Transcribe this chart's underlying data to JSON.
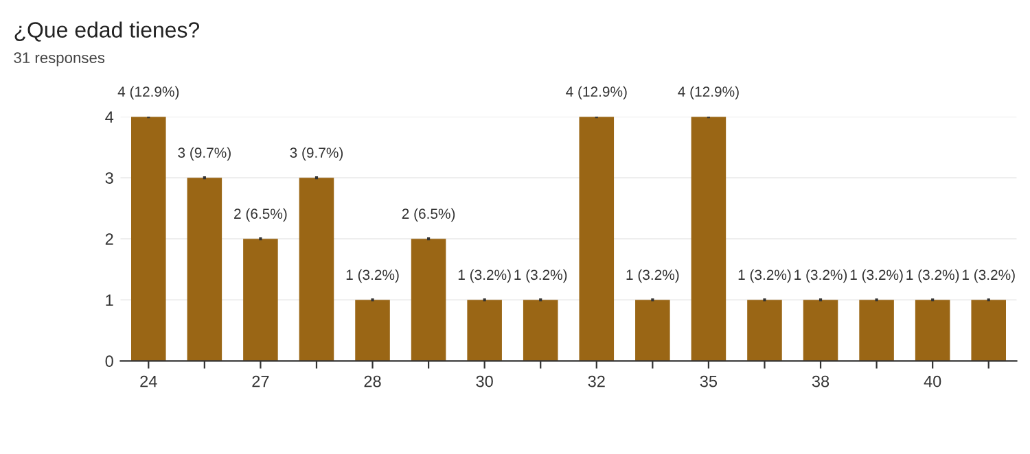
{
  "chart_data": {
    "type": "bar",
    "title": "¿Que edad tienes?",
    "subtitle": "31 responses",
    "categories": [
      "24",
      null,
      "27",
      null,
      "28",
      null,
      "30",
      null,
      "32",
      null,
      "35",
      null,
      "38",
      null,
      "40",
      null
    ],
    "values": [
      4,
      3,
      2,
      3,
      1,
      2,
      1,
      1,
      4,
      1,
      4,
      1,
      1,
      1,
      1,
      1
    ],
    "value_labels": [
      "4 (12.9%)",
      "3 (9.7%)",
      "2 (6.5%)",
      "3 (9.7%)",
      "1 (3.2%)",
      "2 (6.5%)",
      "1 (3.2%)",
      "1 (3.2%)",
      "4 (12.9%)",
      "1 (3.2%)",
      "4 (12.9%)",
      "1 (3.2%)",
      "1 (3.2%)",
      "1 (3.2%)",
      "1 (3.2%)",
      "1 (3.2%)"
    ],
    "color": "#9a6615",
    "ylim": [
      0,
      4
    ],
    "yticks": [
      0,
      1,
      2,
      3,
      4
    ],
    "grid": "y"
  }
}
